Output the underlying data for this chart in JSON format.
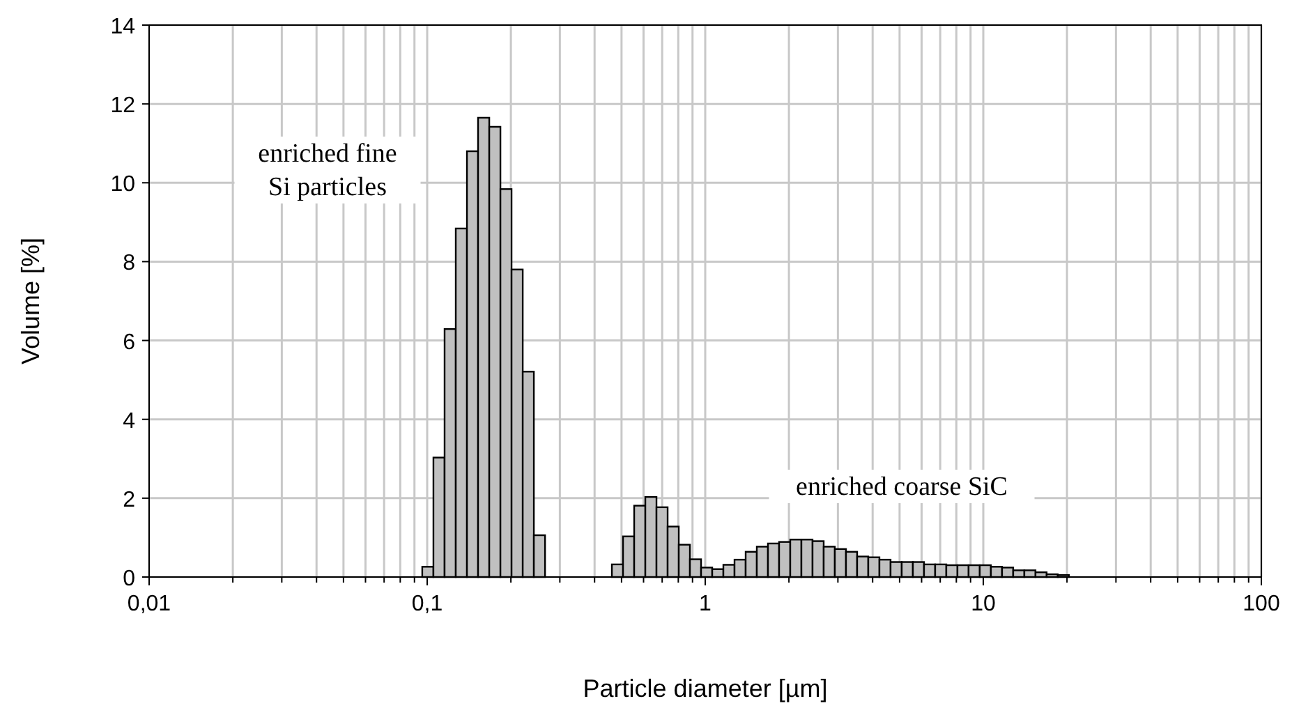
{
  "chart_data": {
    "type": "histogram",
    "xlabel": "Particle diameter [µm]",
    "ylabel": "Volume [%]",
    "log": "x",
    "grid": true,
    "color": "#c0c0c0",
    "bins": [
      0.096,
      0.1053,
      0.1155,
      0.1267,
      0.139,
      0.1524,
      0.1672,
      0.1834,
      0.2011,
      0.2206,
      0.2419,
      0.2654,
      0.4616,
      0.5062,
      0.5552,
      0.6089,
      0.6678,
      0.7324,
      0.8032,
      0.8809,
      0.9661,
      1.0595,
      1.162,
      1.2744,
      1.3976,
      1.5328,
      1.681,
      1.8436,
      2.0219,
      2.2174,
      2.4318,
      2.667,
      2.9249,
      3.2078,
      3.518,
      3.8582,
      4.2313,
      4.6405,
      5.0893,
      5.5815,
      6.1213,
      6.7133,
      7.3625,
      8.0745,
      8.8554,
      9.7118,
      10.651,
      11.681,
      12.811,
      14.05,
      15.409,
      16.899,
      18.533,
      20.325
    ],
    "values": [
      0.26,
      3.03,
      6.29,
      8.84,
      10.8,
      11.65,
      11.42,
      9.84,
      7.8,
      5.21,
      1.06,
      0,
      0.32,
      1.03,
      1.81,
      2.03,
      1.77,
      1.28,
      0.82,
      0.45,
      0.24,
      0.2,
      0.31,
      0.44,
      0.64,
      0.77,
      0.85,
      0.89,
      0.95,
      0.95,
      0.91,
      0.77,
      0.71,
      0.64,
      0.52,
      0.5,
      0.44,
      0.38,
      0.38,
      0.38,
      0.32,
      0.32,
      0.3,
      0.3,
      0.3,
      0.3,
      0.26,
      0.24,
      0.17,
      0.17,
      0.12,
      0.07,
      0.05
    ],
    "xlim": [
      0.01,
      100
    ],
    "ylim": [
      0,
      14
    ],
    "xticks": [
      {
        "value": 0.01,
        "label": "0,01"
      },
      {
        "value": 0.02,
        "label": null
      },
      {
        "value": 0.03,
        "label": null
      },
      {
        "value": 0.04,
        "label": null
      },
      {
        "value": 0.05,
        "label": null
      },
      {
        "value": 0.06,
        "label": null
      },
      {
        "value": 0.07,
        "label": null
      },
      {
        "value": 0.08,
        "label": null
      },
      {
        "value": 0.09,
        "label": null
      },
      {
        "value": 0.1,
        "label": "0,1"
      },
      {
        "value": 0.2,
        "label": null
      },
      {
        "value": 0.3,
        "label": null
      },
      {
        "value": 0.4,
        "label": null
      },
      {
        "value": 0.5,
        "label": null
      },
      {
        "value": 0.6,
        "label": null
      },
      {
        "value": 0.7,
        "label": null
      },
      {
        "value": 0.8,
        "label": null
      },
      {
        "value": 0.9,
        "label": null
      },
      {
        "value": 1,
        "label": "1"
      },
      {
        "value": 2,
        "label": null
      },
      {
        "value": 3,
        "label": null
      },
      {
        "value": 4,
        "label": null
      },
      {
        "value": 5,
        "label": null
      },
      {
        "value": 6,
        "label": null
      },
      {
        "value": 7,
        "label": null
      },
      {
        "value": 8,
        "label": null
      },
      {
        "value": 9,
        "label": null
      },
      {
        "value": 10,
        "label": "10"
      },
      {
        "value": 20,
        "label": null
      },
      {
        "value": 30,
        "label": null
      },
      {
        "value": 40,
        "label": null
      },
      {
        "value": 50,
        "label": null
      },
      {
        "value": 60,
        "label": null
      },
      {
        "value": 70,
        "label": null
      },
      {
        "value": 80,
        "label": null
      },
      {
        "value": 90,
        "label": null
      },
      {
        "value": 100,
        "label": "100"
      }
    ],
    "yticks": [
      0,
      2,
      4,
      6,
      8,
      10,
      12,
      14
    ],
    "annotations": [
      "enriched fine Si particles",
      "enriched coarse SiC"
    ]
  }
}
